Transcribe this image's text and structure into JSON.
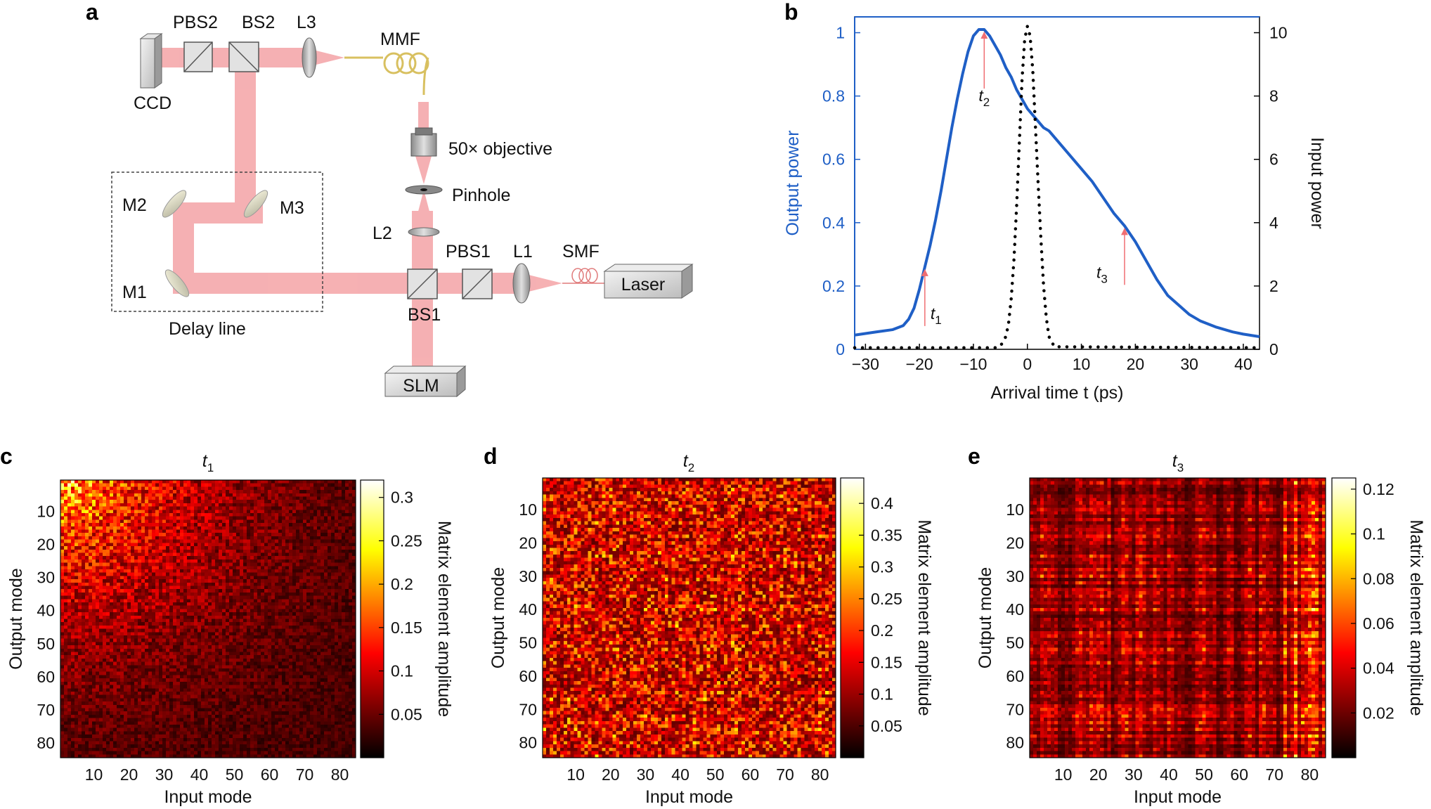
{
  "panels": {
    "a": "a",
    "b": "b",
    "c": "c",
    "d": "d",
    "e": "e"
  },
  "setup": {
    "ccd": "CCD",
    "pbs2": "PBS2",
    "bs2": "BS2",
    "l3": "L3",
    "mmf": "MMF",
    "objective": "50× objective",
    "pinhole": "Pinhole",
    "m1": "M1",
    "m2": "M2",
    "m3": "M3",
    "delay_line": "Delay line",
    "l2": "L2",
    "pbs1": "PBS1",
    "l1": "L1",
    "smf": "SMF",
    "laser": "Laser",
    "bs1": "BS1",
    "slm": "SLM"
  },
  "colors": {
    "beam": "#f4a3a6",
    "output_curve": "#1f5fc6",
    "input_curve": "#000000",
    "arrow": "#f06e72",
    "fiber": "#d8c060"
  },
  "chart_data": [
    {
      "panel": "b",
      "type": "line",
      "title": "",
      "xlabel": "Arrival time t (ps)",
      "ylabel_left": "Output power",
      "ylabel_right": "Input power",
      "xlim": [
        -32,
        43
      ],
      "ylim_left": [
        0,
        1.05
      ],
      "ylim_right": [
        0,
        10.5
      ],
      "xticks": [
        -30,
        -20,
        -10,
        0,
        10,
        20,
        30,
        40
      ],
      "xtick_labels": [
        "−30",
        "−20",
        "−10",
        "0",
        "10",
        "20",
        "30",
        "40"
      ],
      "yticks_left": [
        0,
        0.2,
        0.4,
        0.6,
        0.8,
        1
      ],
      "ytick_labels_left": [
        "0",
        "0.2",
        "0.4",
        "0.6",
        "0.8",
        "1"
      ],
      "yticks_right": [
        0,
        2,
        4,
        6,
        8,
        10
      ],
      "ytick_labels_right": [
        "0",
        "2",
        "4",
        "6",
        "8",
        "10"
      ],
      "series": [
        {
          "name": "Output power",
          "axis": "left",
          "style": "solid",
          "x": [
            -32,
            -28,
            -25,
            -23,
            -22,
            -21,
            -20,
            -19,
            -18,
            -17,
            -16,
            -15,
            -14,
            -13,
            -12,
            -11,
            -10,
            -9,
            -8,
            -7,
            -6,
            -5,
            -4,
            -3,
            -2,
            -1,
            0,
            1,
            2,
            3,
            4,
            5,
            6,
            8,
            10,
            12,
            14,
            16,
            18,
            20,
            22,
            24,
            26,
            28,
            30,
            32,
            35,
            38,
            40,
            43
          ],
          "y": [
            0.045,
            0.055,
            0.062,
            0.075,
            0.095,
            0.13,
            0.19,
            0.26,
            0.33,
            0.41,
            0.5,
            0.6,
            0.7,
            0.79,
            0.87,
            0.94,
            0.99,
            1.01,
            1.01,
            0.99,
            0.96,
            0.93,
            0.89,
            0.86,
            0.82,
            0.79,
            0.76,
            0.74,
            0.72,
            0.7,
            0.69,
            0.67,
            0.65,
            0.61,
            0.57,
            0.53,
            0.48,
            0.43,
            0.39,
            0.34,
            0.28,
            0.22,
            0.17,
            0.14,
            0.11,
            0.09,
            0.07,
            0.055,
            0.048,
            0.04
          ]
        },
        {
          "name": "Input power",
          "axis": "right",
          "style": "dotted",
          "x": [
            -32,
            -6,
            -5,
            -4,
            -3.5,
            -3,
            -2.5,
            -2,
            -1.5,
            -1,
            -0.5,
            0,
            0.5,
            1,
            1.5,
            2,
            2.5,
            3,
            3.5,
            4,
            5,
            43
          ],
          "y": [
            0.05,
            0.05,
            0.1,
            0.4,
            0.8,
            1.6,
            2.8,
            4.5,
            6.5,
            8.5,
            9.8,
            10.2,
            9.9,
            8.8,
            7.0,
            5.2,
            3.5,
            2.0,
            1.0,
            0.4,
            0.08,
            0.05
          ]
        }
      ],
      "annotations": [
        {
          "label": "t",
          "sub": "1",
          "x": -19
        },
        {
          "label": "t",
          "sub": "2",
          "x": -8
        },
        {
          "label": "t",
          "sub": "3",
          "x": 18
        }
      ]
    },
    {
      "panel": "c",
      "type": "heatmap",
      "title_main": "t",
      "title_sub": "1",
      "xlabel": "Input mode",
      "ylabel": "Output mode",
      "colorbar_label": "Matrix element amplitude",
      "size": [
        84,
        84
      ],
      "pattern": "corner",
      "seed": 11,
      "vmin": 0.0,
      "vmax": 0.32,
      "colorbar_ticks": [
        0.05,
        0.1,
        0.15,
        0.2,
        0.25,
        0.3
      ],
      "colorbar_tick_labels": [
        "0.05",
        "0.1",
        "0.15",
        "0.2",
        "0.25",
        "0.3"
      ],
      "xticks": [
        10,
        20,
        30,
        40,
        50,
        60,
        70,
        80
      ],
      "xtick_labels": [
        "10",
        "20",
        "30",
        "40",
        "50",
        "60",
        "70",
        "80"
      ],
      "yticks": [
        10,
        20,
        30,
        40,
        50,
        60,
        70,
        80
      ],
      "ytick_labels": [
        "10",
        "20",
        "30",
        "40",
        "50",
        "60",
        "70",
        "80"
      ]
    },
    {
      "panel": "d",
      "type": "heatmap",
      "title_main": "t",
      "title_sub": "2",
      "xlabel": "Input mode",
      "ylabel": "Output mode",
      "colorbar_label": "Matrix element amplitude",
      "size": [
        84,
        84
      ],
      "pattern": "uniform",
      "seed": 23,
      "vmin": 0.0,
      "vmax": 0.44,
      "colorbar_ticks": [
        0.05,
        0.1,
        0.15,
        0.2,
        0.25,
        0.3,
        0.35,
        0.4
      ],
      "colorbar_tick_labels": [
        "0.05",
        "0.1",
        "0.15",
        "0.2",
        "0.25",
        "0.3",
        "0.35",
        "0.4"
      ],
      "xticks": [
        10,
        20,
        30,
        40,
        50,
        60,
        70,
        80
      ],
      "xtick_labels": [
        "10",
        "20",
        "30",
        "40",
        "50",
        "60",
        "70",
        "80"
      ],
      "yticks": [
        10,
        20,
        30,
        40,
        50,
        60,
        70,
        80
      ],
      "ytick_labels": [
        "10",
        "20",
        "30",
        "40",
        "50",
        "60",
        "70",
        "80"
      ]
    },
    {
      "panel": "e",
      "type": "heatmap",
      "title_main": "t",
      "title_sub": "3",
      "xlabel": "Input mode",
      "ylabel": "Output mode",
      "colorbar_label": "Matrix element amplitude",
      "size": [
        84,
        84
      ],
      "pattern": "late",
      "seed": 37,
      "vmin": 0.0,
      "vmax": 0.125,
      "colorbar_ticks": [
        0.02,
        0.04,
        0.06,
        0.08,
        0.1,
        0.12
      ],
      "colorbar_tick_labels": [
        "0.02",
        "0.04",
        "0.06",
        "0.08",
        "0.1",
        "0.12"
      ],
      "xticks": [
        10,
        20,
        30,
        40,
        50,
        60,
        70,
        80
      ],
      "xtick_labels": [
        "10",
        "20",
        "30",
        "40",
        "50",
        "60",
        "70",
        "80"
      ],
      "yticks": [
        10,
        20,
        30,
        40,
        50,
        60,
        70,
        80
      ],
      "ytick_labels": [
        "10",
        "20",
        "30",
        "40",
        "50",
        "60",
        "70",
        "80"
      ]
    }
  ]
}
